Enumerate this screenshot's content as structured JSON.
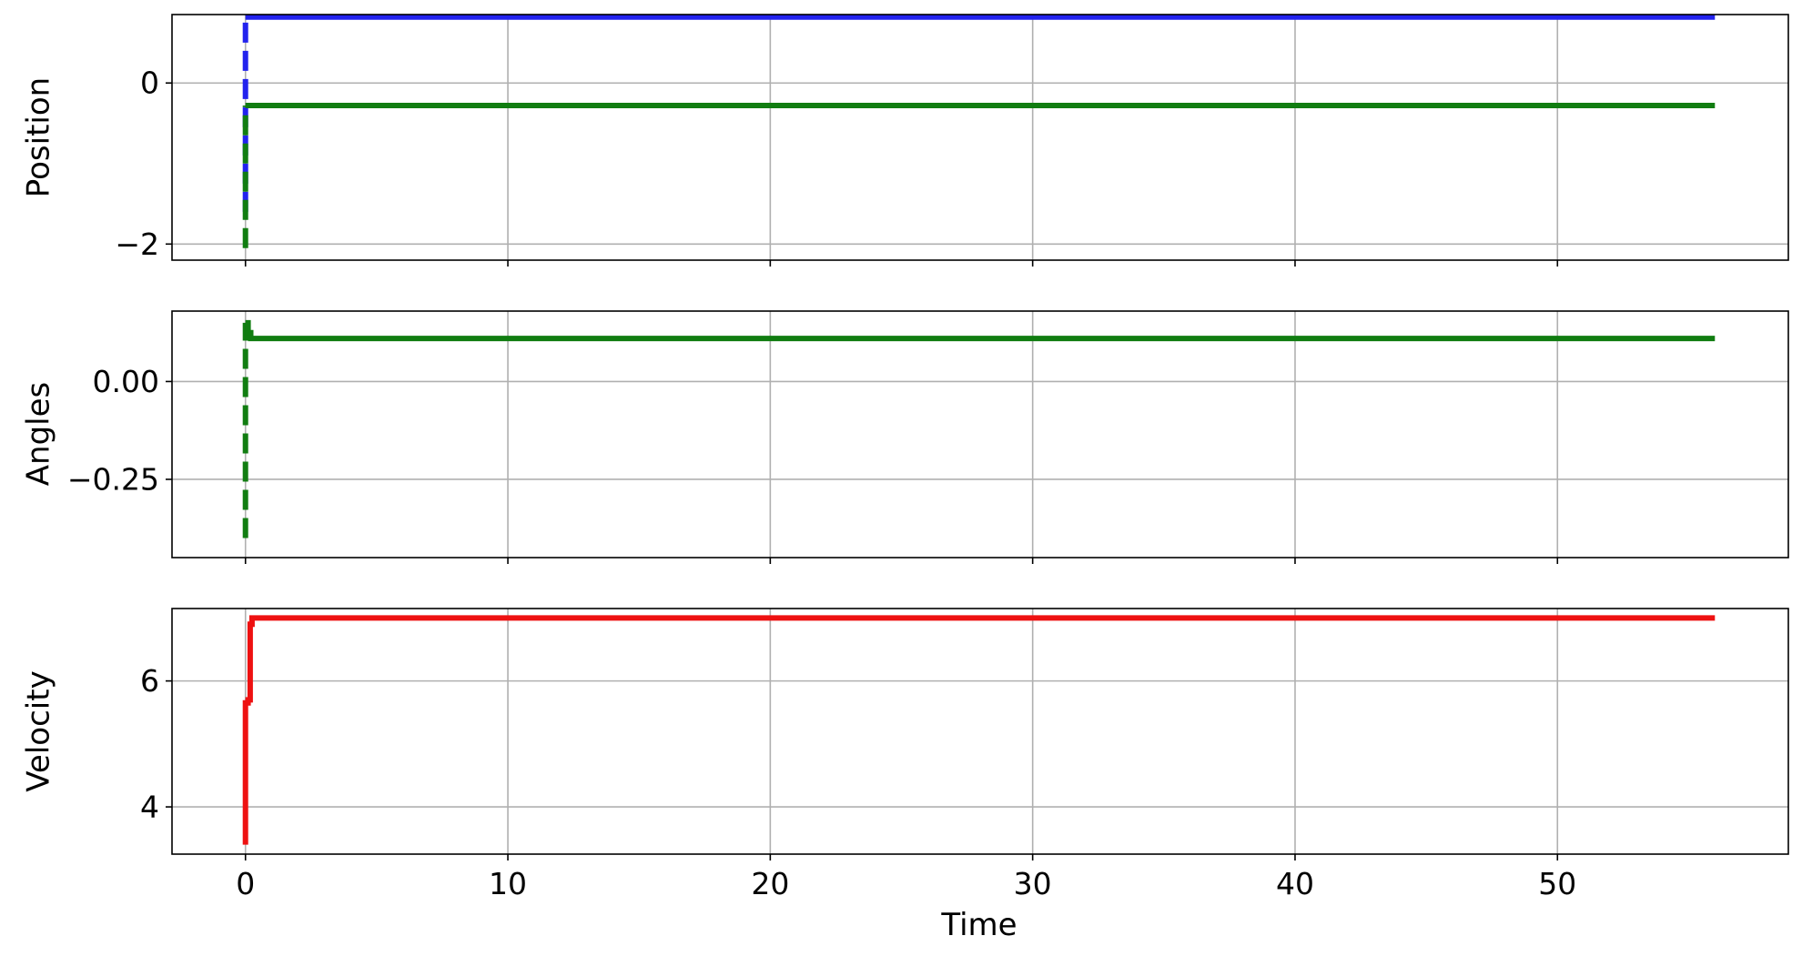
{
  "chart_data": [
    {
      "type": "line",
      "title": "",
      "xlabel": "",
      "ylabel": "Position",
      "xlim": [
        -2.8,
        58.8
      ],
      "ylim": [
        -2.2,
        0.85
      ],
      "grid": true,
      "x_ticks": [
        0,
        10,
        20,
        30,
        40,
        50
      ],
      "x_tick_labels_visible": false,
      "y_ticks": [
        -2,
        0
      ],
      "y_tick_labels": [
        "−2",
        "0"
      ],
      "series": [
        {
          "color": "#2222ee",
          "style": "dashed",
          "x": [
            0,
            0
          ],
          "y": [
            -1.6,
            0.82
          ]
        },
        {
          "color": "#2222ee",
          "style": "solid",
          "x": [
            0,
            56
          ],
          "y": [
            0.82,
            0.82
          ]
        },
        {
          "color": "#117d11",
          "style": "dashed",
          "x": [
            0,
            0
          ],
          "y": [
            -2.05,
            -0.28
          ]
        },
        {
          "color": "#117d11",
          "style": "solid",
          "x": [
            0,
            56
          ],
          "y": [
            -0.28,
            -0.28
          ]
        }
      ]
    },
    {
      "type": "line",
      "title": "",
      "xlabel": "",
      "ylabel": "Angles",
      "xlim": [
        -2.8,
        58.8
      ],
      "ylim": [
        -0.45,
        0.18
      ],
      "grid": true,
      "x_ticks": [
        0,
        10,
        20,
        30,
        40,
        50
      ],
      "x_tick_labels_visible": false,
      "y_ticks": [
        -0.25,
        0.0
      ],
      "y_tick_labels": [
        "−0.25",
        "0.00"
      ],
      "series": [
        {
          "color": "#117d11",
          "style": "dashed",
          "x": [
            0,
            0
          ],
          "y": [
            -0.4,
            0.15
          ]
        },
        {
          "color": "#117d11",
          "style": "solid",
          "x": [
            0,
            0.1,
            0.1,
            0.2,
            0.2,
            56
          ],
          "y": [
            0.15,
            0.15,
            0.125,
            0.125,
            0.11,
            0.11
          ]
        }
      ]
    },
    {
      "type": "line",
      "title": "",
      "xlabel": "Time",
      "ylabel": "Velocity",
      "xlim": [
        -2.8,
        58.8
      ],
      "ylim": [
        3.25,
        7.15
      ],
      "grid": true,
      "x_ticks": [
        0,
        10,
        20,
        30,
        40,
        50
      ],
      "x_tick_labels": [
        "0",
        "10",
        "20",
        "30",
        "40",
        "50"
      ],
      "x_tick_labels_visible": true,
      "y_ticks": [
        4,
        6
      ],
      "y_tick_labels": [
        "4",
        "6"
      ],
      "series": [
        {
          "color": "#ee1111",
          "style": "solid",
          "x": [
            0,
            0,
            0.1,
            0.1,
            0.18,
            0.18,
            0.25,
            0.25,
            56
          ],
          "y": [
            3.4,
            5.65,
            5.65,
            5.7,
            5.7,
            6.9,
            6.9,
            7.0,
            7.0
          ]
        }
      ]
    }
  ]
}
